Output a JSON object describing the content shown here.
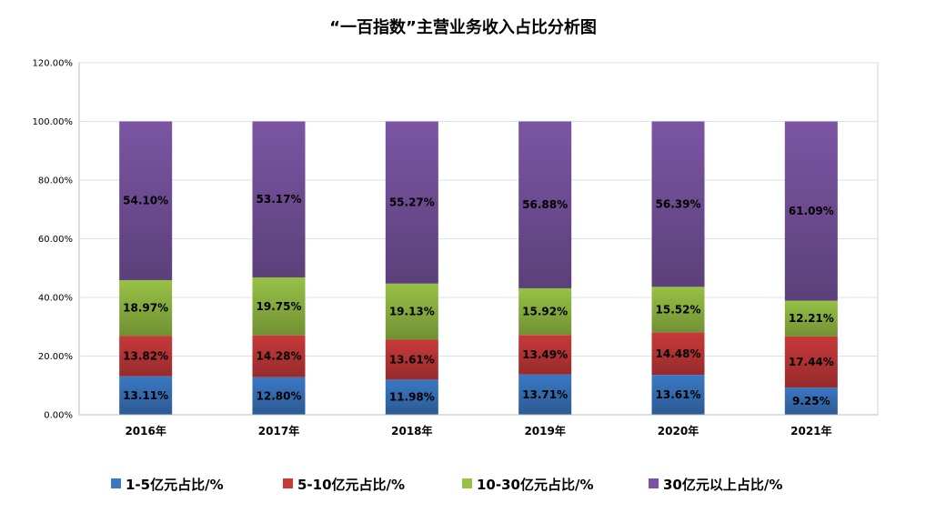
{
  "chart_data": {
    "type": "bar",
    "stacked": true,
    "title": "“一百指数”主营业务收入占比分析图",
    "xlabel": "",
    "ylabel": "",
    "ylim": [
      0,
      120
    ],
    "yticks": [
      "0.00%",
      "20.00%",
      "40.00%",
      "60.00%",
      "80.00%",
      "100.00%",
      "120.00%"
    ],
    "grid": true,
    "legend_position": "bottom",
    "categories": [
      "2016年",
      "2017年",
      "2018年",
      "2019年",
      "2020年",
      "2021年"
    ],
    "series": [
      {
        "name": "1-5亿元占比/%",
        "color": "#3a78c4",
        "values": [
          13.11,
          12.8,
          11.98,
          13.71,
          13.61,
          9.25
        ],
        "labels": [
          "13.11%",
          "12.80%",
          "11.98%",
          "13.71%",
          "13.61%",
          "9.25%"
        ]
      },
      {
        "name": "5-10亿元占比/%",
        "color": "#c8393a",
        "values": [
          13.82,
          14.28,
          13.61,
          13.49,
          14.48,
          17.44
        ],
        "labels": [
          "13.82%",
          "14.28%",
          "13.61%",
          "13.49%",
          "14.48%",
          "17.44%"
        ]
      },
      {
        "name": "10-30亿元占比/%",
        "color": "#97c145",
        "values": [
          18.97,
          19.75,
          19.13,
          15.92,
          15.52,
          12.21
        ],
        "labels": [
          "18.97%",
          "19.75%",
          "19.13%",
          "15.92%",
          "15.52%",
          "12.21%"
        ]
      },
      {
        "name": "30亿元以上占比/%",
        "color": "#7b55a3",
        "values": [
          54.1,
          53.17,
          55.27,
          56.88,
          56.39,
          61.09
        ],
        "labels": [
          "54.10%",
          "53.17%",
          "55.27%",
          "56.88%",
          "56.39%",
          "61.09%"
        ]
      }
    ]
  }
}
